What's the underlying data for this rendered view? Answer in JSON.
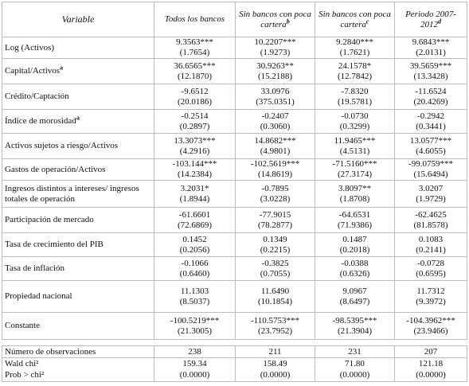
{
  "table": {
    "header": [
      "Variable",
      "Todos los bancos",
      "Sin bancos con poca cartera",
      "Sin bancos con poca cartera",
      "Periodo 2007-2012"
    ],
    "header_notes": [
      null,
      null,
      "b",
      "c",
      "d"
    ],
    "rows": [
      {
        "label": "Log (Activos)",
        "cells": [
          [
            "9.3563***",
            "(1.7654)"
          ],
          [
            "10.2207***",
            "(1.9273)"
          ],
          [
            "9.2840***",
            "(1.7621)"
          ],
          [
            "9.6843***",
            "(2.0131)"
          ]
        ]
      },
      {
        "label": "Capital/Activos",
        "note": "a",
        "cells": [
          [
            "36.6565***",
            "(12.1870)"
          ],
          [
            "30.9263**",
            "(15.2188)"
          ],
          [
            "24.1578*",
            "(12.7842)"
          ],
          [
            "39.5659***",
            "(13.3428)"
          ]
        ]
      },
      {
        "label": "Crédito/Captación",
        "cells": [
          [
            "-9.6512",
            "(20.0186)"
          ],
          [
            "33.0976",
            "(375.0351)"
          ],
          [
            "-7.8320",
            "(19.5781)"
          ],
          [
            "-11.6524",
            "(20.4269)"
          ]
        ]
      },
      {
        "label": "Índice de morosidad",
        "note": "a",
        "cells": [
          [
            "-0.2514",
            "(0.2897)"
          ],
          [
            "-0.2407",
            "(0.3060)"
          ],
          [
            "-0.0730",
            "(0.3299)"
          ],
          [
            "-0.2942",
            "(0.3441)"
          ]
        ]
      },
      {
        "label": "Activos sujetos a riesgo/Activos",
        "cells": [
          [
            "13.3073***",
            "(4.2916)"
          ],
          [
            "14.8682***",
            "(4.9801)"
          ],
          [
            "11.9465***",
            "(4.5131)"
          ],
          [
            "13.0577***",
            "(4.6055)"
          ]
        ]
      },
      {
        "label": "Gastos de operación/Activos",
        "cells": [
          [
            "-103.144***",
            "(14.2384)"
          ],
          [
            "-102.5619***",
            "(14.8619)"
          ],
          [
            "-71.5160***",
            "(27.3174)"
          ],
          [
            "-99.0759***",
            "(15.6494)"
          ]
        ]
      },
      {
        "label": "Ingresos distintos a intereses/ ingresos totales de operación",
        "cells": [
          [
            "3.2031*",
            "(1.8944)"
          ],
          [
            "-0.7895",
            "(3.0228)"
          ],
          [
            "3.8097**",
            "(1.8708)"
          ],
          [
            "3.0207",
            "(1.9729)"
          ]
        ]
      },
      {
        "label": "Participación de mercado",
        "cells": [
          [
            "-61.6601",
            "(72.6869)"
          ],
          [
            "-77.9015",
            "(78.2877)"
          ],
          [
            "-64.6531",
            "(71.9386)"
          ],
          [
            "-62.4625",
            "(81.8578)"
          ]
        ]
      },
      {
        "label": "Tasa de crecimiento del PIB",
        "cells": [
          [
            "0.1452",
            "(0.2056)"
          ],
          [
            "0.1349",
            "(0.2215)"
          ],
          [
            "0.1487",
            "(0.2018)"
          ],
          [
            "0.1083",
            "(0.2141)"
          ]
        ]
      },
      {
        "label": "Tasa de inflación",
        "cells": [
          [
            "-0.1066",
            "(0.6460)"
          ],
          [
            "-0.3825",
            "(0.7055)"
          ],
          [
            "-0.0388",
            "(0.6326)"
          ],
          [
            "-0.0728",
            "(0.6595)"
          ]
        ]
      },
      {
        "label": "Propiedad nacional",
        "cells": [
          [
            "11.1303",
            "(8.5037)"
          ],
          [
            "11.6490",
            "(10.1854)"
          ],
          [
            "9.0967",
            "(8.6497)"
          ],
          [
            "11.7312",
            "(9.3972)"
          ]
        ]
      },
      {
        "label": "Constante",
        "cells": [
          [
            "-100.5219***",
            "(21.3005)"
          ],
          [
            "-110.5753***",
            "(23.7952)"
          ],
          [
            "-98.5395***",
            "(21.3904)"
          ],
          [
            "-104.3962***",
            "(23.9466)"
          ]
        ]
      }
    ],
    "footer": [
      {
        "label": "Número de observaciones",
        "values": [
          "238",
          "211",
          "231",
          "207"
        ]
      },
      {
        "label": "Wald chi²",
        "values": [
          "159.34",
          "158.49",
          "71.80",
          "121.18"
        ]
      },
      {
        "label": "Prob > chi²",
        "values": [
          "(0.0000)",
          "(0.0000)",
          "(0.0000)",
          "(0.0000)"
        ]
      }
    ]
  }
}
